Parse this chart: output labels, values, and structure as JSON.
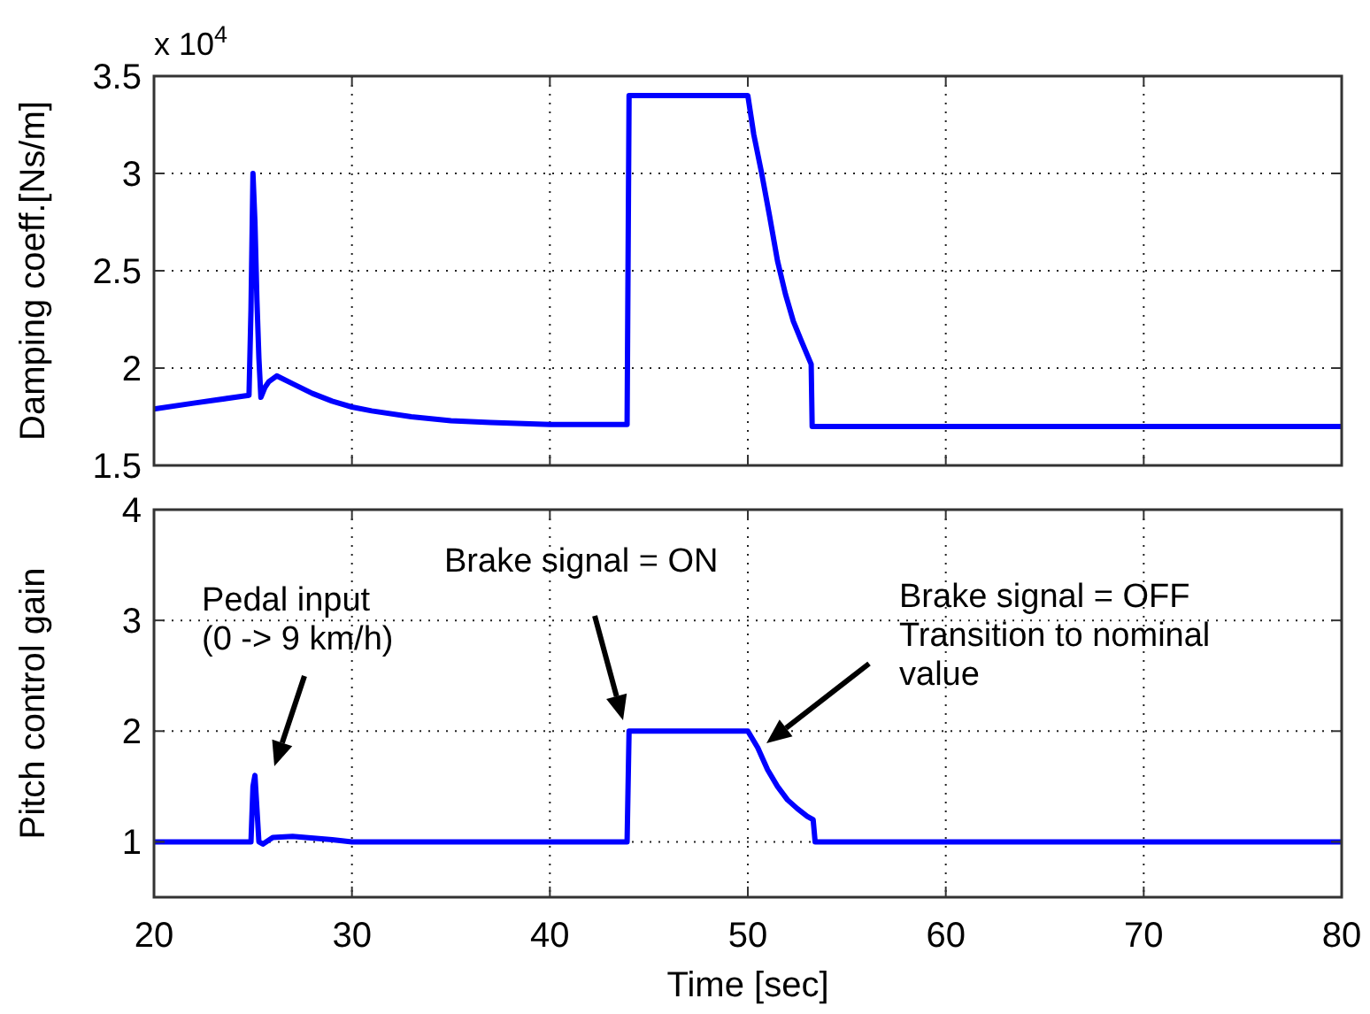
{
  "chart_data": [
    {
      "type": "line",
      "ylabel": "Damping coeff.[Ns/m]",
      "xlim": [
        20,
        80
      ],
      "xticks": [
        20,
        30,
        40,
        50,
        60,
        70,
        80
      ],
      "ylim": [
        1.5,
        3.5
      ],
      "yticks": [
        1.5,
        2,
        2.5,
        3,
        3.5
      ],
      "grid": true,
      "tick_labels": "y",
      "annotations": [
        "x 10$^{4}$"
      ],
      "series": [
        {
          "color": "#0000ff",
          "x": [
            20,
            22,
            24.8,
            24.9,
            25.0,
            25.1,
            25.2,
            25.3,
            25.4,
            25.6,
            25.8,
            26.2,
            27,
            28,
            29,
            30,
            31,
            33,
            35,
            37,
            40,
            43.9,
            44,
            50,
            50.3,
            50.7,
            51.1,
            51.5,
            51.9,
            52.3,
            52.7,
            53.2,
            53.25,
            80
          ],
          "values": [
            1.79,
            1.82,
            1.86,
            2.3,
            3.0,
            2.75,
            2.35,
            2.05,
            1.85,
            1.9,
            1.93,
            1.96,
            1.92,
            1.87,
            1.83,
            1.8,
            1.78,
            1.75,
            1.73,
            1.72,
            1.71,
            1.71,
            3.4,
            3.4,
            3.2,
            3.0,
            2.78,
            2.55,
            2.38,
            2.24,
            2.14,
            2.02,
            1.7,
            1.7
          ]
        }
      ]
    },
    {
      "type": "line",
      "xlabel": "Time [sec]",
      "ylabel": "Pitch control gain",
      "xlim": [
        20,
        80
      ],
      "xticks": [
        20,
        30,
        40,
        50,
        60,
        70,
        80
      ],
      "ylim": [
        0.5,
        4
      ],
      "yticks": [
        1,
        2,
        3,
        4
      ],
      "grid": true,
      "annotations": [
        "Pedal input\n(0 -> 9 km/h)",
        "Brake signal = ON",
        "Brake signal = OFF\nTransition to nominal\nvalue"
      ],
      "series": [
        {
          "color": "#0000ff",
          "x": [
            20,
            24.9,
            25.0,
            25.1,
            25.2,
            25.3,
            25.5,
            26,
            27,
            29,
            30,
            43.9,
            44,
            50,
            50.5,
            51,
            51.5,
            52,
            52.5,
            53,
            53.3,
            53.4,
            80
          ],
          "values": [
            1,
            1,
            1.5,
            1.6,
            1.3,
            1.0,
            0.98,
            1.04,
            1.05,
            1.02,
            1.0,
            1.0,
            2,
            2,
            1.85,
            1.65,
            1.5,
            1.38,
            1.3,
            1.23,
            1.2,
            1,
            1
          ]
        }
      ]
    }
  ]
}
